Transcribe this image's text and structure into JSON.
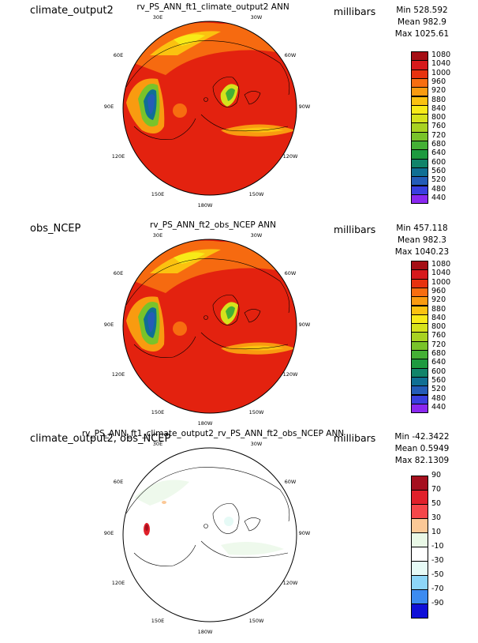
{
  "panels": [
    {
      "label": "climate_output2",
      "title": "rv_PS_ANN_ft1_climate_output2  ANN",
      "units": "millibars",
      "stats": {
        "min": "Min 528.592",
        "mean": "Mean 982.9",
        "max": "Max 1025.61"
      },
      "map_kind": "field",
      "colorbar": {
        "labels": [
          "1080",
          "1040",
          "1000",
          "960",
          "920",
          "880",
          "840",
          "800",
          "760",
          "720",
          "680",
          "640",
          "600",
          "560",
          "520",
          "480",
          "440"
        ],
        "colors": [
          "#a50f15",
          "#d7191c",
          "#e8320f",
          "#f76d10",
          "#f99b10",
          "#fbc210",
          "#f8ea18",
          "#d6e21c",
          "#a8d221",
          "#79c32a",
          "#44b035",
          "#1d9a3f",
          "#11846a",
          "#106f94",
          "#245cb8",
          "#3a3fe0",
          "#8a28f0"
        ]
      },
      "lon_labels": [
        "30E",
        "30W",
        "60E",
        "60W",
        "90E",
        "90W",
        "120E",
        "120W",
        "150E",
        "150W",
        "180W"
      ]
    },
    {
      "label": "obs_NCEP",
      "title": "rv_PS_ANN_ft2_obs_NCEP  ANN",
      "units": "millibars",
      "stats": {
        "min": "Min 457.118",
        "mean": "Mean 982.3",
        "max": "Max 1040.23"
      },
      "map_kind": "field",
      "colorbar": {
        "labels": [
          "1080",
          "1040",
          "1000",
          "960",
          "920",
          "880",
          "840",
          "800",
          "760",
          "720",
          "680",
          "640",
          "600",
          "560",
          "520",
          "480",
          "440"
        ],
        "colors": [
          "#a50f15",
          "#d7191c",
          "#e8320f",
          "#f76d10",
          "#f99b10",
          "#fbc210",
          "#f8ea18",
          "#d6e21c",
          "#a8d221",
          "#79c32a",
          "#44b035",
          "#1d9a3f",
          "#11846a",
          "#106f94",
          "#245cb8",
          "#3a3fe0",
          "#8a28f0"
        ]
      },
      "lon_labels": [
        "30E",
        "30W",
        "60E",
        "60W",
        "90E",
        "90W",
        "120E",
        "120W",
        "150E",
        "150W",
        "180W"
      ]
    },
    {
      "label": "climate_output2, obs_NCEP",
      "title": "rv_PS_ANN_ft1_climate_output2_rv_PS_ANN_ft2_obs_NCEP  ANN",
      "units": "millibars",
      "stats": {
        "min": "Min -42.3422",
        "mean": "Mean 0.5949",
        "max": "Max 82.1309"
      },
      "map_kind": "diff",
      "colorbar": {
        "labels": [
          "90",
          "70",
          "50",
          "30",
          "10",
          "-10",
          "-30",
          "-50",
          "-70",
          "-90"
        ],
        "colors": [
          "#a50f1e",
          "#e0202a",
          "#f5474a",
          "#fbc896",
          "#e9f8e6",
          "#ffffff",
          "#e6faf6",
          "#8dd6f8",
          "#3c8bf0",
          "#1010d8"
        ]
      },
      "lon_labels": [
        "30E",
        "30W",
        "60E",
        "60W",
        "90E",
        "90W",
        "120E",
        "120W",
        "150E",
        "150W",
        "180W"
      ]
    }
  ]
}
